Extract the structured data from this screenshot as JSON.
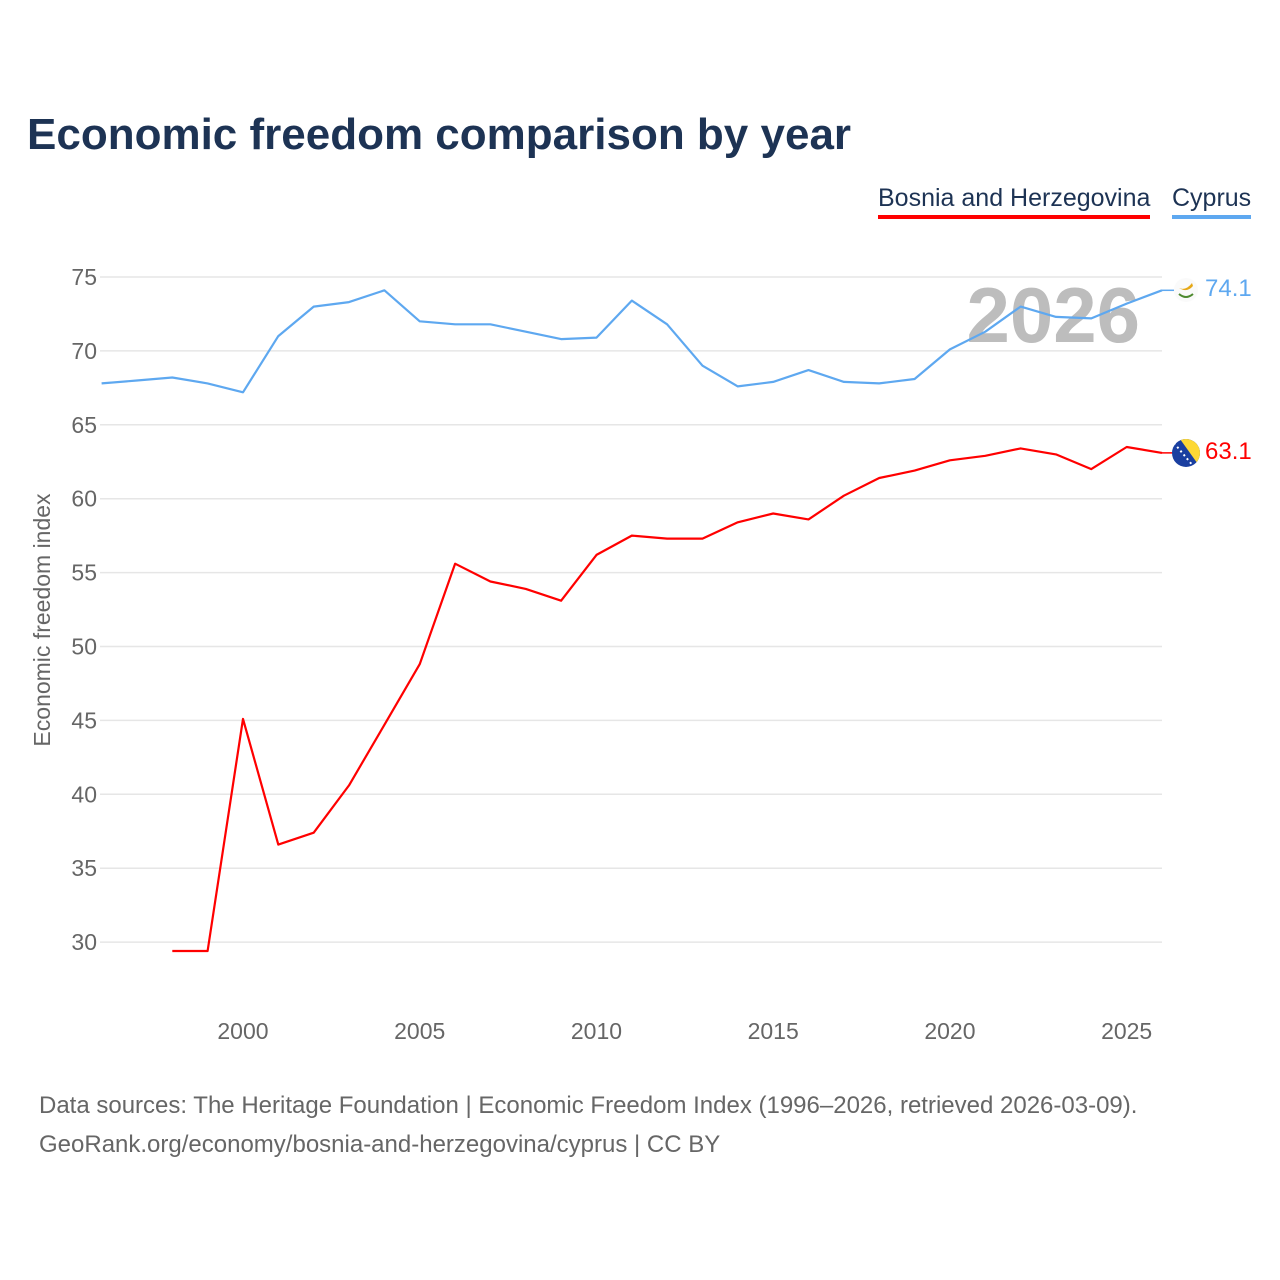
{
  "title": "Economic freedom comparison by year",
  "footer": {
    "line1": "Data sources: The Heritage Foundation | Economic Freedom Index (1996–2026, retrieved 2026-03-09).",
    "line2": "GeoRank.org/economy/bosnia-and-herzegovina/cyprus | CC BY"
  },
  "chart_data": {
    "type": "line",
    "title": "Economic freedom comparison by year",
    "xlabel": "",
    "ylabel": "Economic freedom index",
    "xlim": [
      1996,
      2026
    ],
    "ylim": [
      25,
      77
    ],
    "yticks": [
      30,
      35,
      40,
      45,
      50,
      55,
      60,
      65,
      70,
      75
    ],
    "xticks": [
      2000,
      2005,
      2010,
      2015,
      2020,
      2025
    ],
    "year_watermark": "2026",
    "legend_position": "top-right",
    "series": [
      {
        "name": "Bosnia and Herzegovina",
        "color": "#ff0000",
        "end_label": "63.1",
        "x": [
          1998,
          1999,
          2000,
          2001,
          2002,
          2003,
          2004,
          2005,
          2006,
          2007,
          2008,
          2009,
          2010,
          2011,
          2012,
          2013,
          2014,
          2015,
          2016,
          2017,
          2018,
          2019,
          2020,
          2021,
          2022,
          2023,
          2024,
          2025,
          2026
        ],
        "values": [
          29.4,
          29.4,
          45.1,
          36.6,
          37.4,
          40.6,
          44.7,
          48.8,
          55.6,
          54.4,
          53.9,
          53.1,
          56.2,
          57.5,
          57.3,
          57.3,
          58.4,
          59.0,
          58.6,
          60.2,
          61.4,
          61.9,
          62.6,
          62.9,
          63.4,
          63.0,
          62.0,
          63.5,
          63.1
        ]
      },
      {
        "name": "Cyprus",
        "color": "#5ea8f0",
        "end_label": "74.1",
        "x": [
          1996,
          1997,
          1998,
          1999,
          2000,
          2001,
          2002,
          2003,
          2004,
          2005,
          2006,
          2007,
          2008,
          2009,
          2010,
          2011,
          2012,
          2013,
          2014,
          2015,
          2016,
          2017,
          2018,
          2019,
          2020,
          2021,
          2022,
          2023,
          2024,
          2025,
          2026
        ],
        "values": [
          67.8,
          68.0,
          68.2,
          67.8,
          67.2,
          71.0,
          73.0,
          73.3,
          74.1,
          72.0,
          71.8,
          71.8,
          71.3,
          70.8,
          70.9,
          73.4,
          71.8,
          69.0,
          67.6,
          67.9,
          68.7,
          67.9,
          67.8,
          68.1,
          70.1,
          71.3,
          73.0,
          72.3,
          72.2,
          73.2,
          74.1
        ]
      }
    ]
  }
}
